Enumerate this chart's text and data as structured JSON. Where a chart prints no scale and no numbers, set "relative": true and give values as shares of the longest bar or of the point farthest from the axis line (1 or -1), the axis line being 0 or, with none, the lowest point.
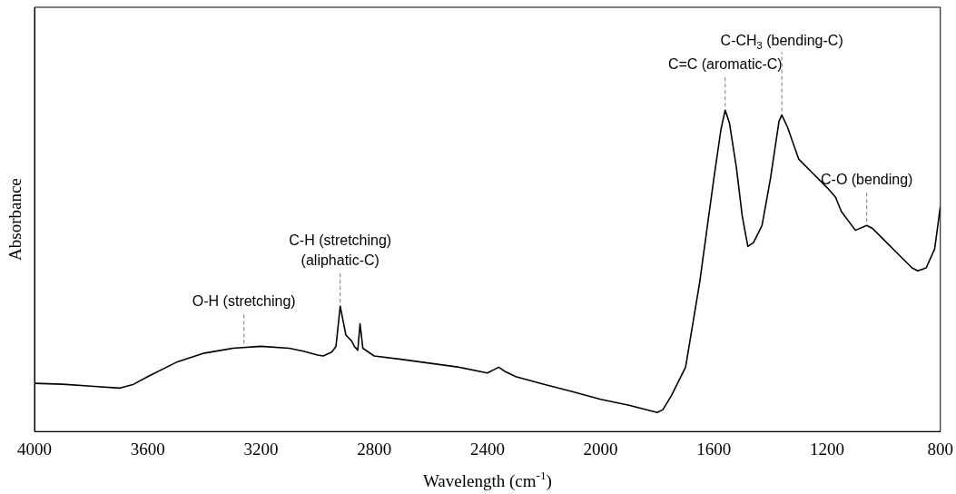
{
  "chart_data": {
    "type": "line",
    "relative": true,
    "xlabel": "Wavelength (cm$^{-1}$)",
    "ylabel": "Absorbance",
    "xlim": [
      4000,
      800
    ],
    "xticks": [
      4000,
      3600,
      3200,
      2800,
      2400,
      2000,
      1600,
      1200,
      800
    ],
    "grid": false,
    "legend": false,
    "marker": "none",
    "line_style": "solid",
    "series": [
      {
        "color": "#000000",
        "x": [
          4000,
          3900,
          3800,
          3700,
          3650,
          3600,
          3500,
          3400,
          3300,
          3200,
          3100,
          3050,
          3000,
          2980,
          2950,
          2935,
          2920,
          2900,
          2880,
          2870,
          2858,
          2850,
          2840,
          2800,
          2700,
          2600,
          2500,
          2400,
          2360,
          2340,
          2300,
          2200,
          2100,
          2000,
          1900,
          1800,
          1780,
          1750,
          1700,
          1650,
          1600,
          1575,
          1560,
          1545,
          1520,
          1500,
          1480,
          1460,
          1430,
          1400,
          1370,
          1360,
          1340,
          1300,
          1250,
          1200,
          1170,
          1150,
          1100,
          1060,
          1040,
          1000,
          950,
          900,
          880,
          850,
          820,
          800
        ],
        "values": [
          0.15,
          0.147,
          0.141,
          0.135,
          0.147,
          0.171,
          0.215,
          0.244,
          0.259,
          0.265,
          0.259,
          0.25,
          0.238,
          0.235,
          0.247,
          0.265,
          0.39,
          0.3,
          0.282,
          0.265,
          0.253,
          0.335,
          0.259,
          0.235,
          0.224,
          0.212,
          0.2,
          0.182,
          0.2,
          0.188,
          0.171,
          0.147,
          0.124,
          0.1,
          0.082,
          0.059,
          0.068,
          0.112,
          0.2,
          0.465,
          0.788,
          0.94,
          1.0,
          0.96,
          0.818,
          0.671,
          0.576,
          0.588,
          0.641,
          0.788,
          0.965,
          0.985,
          0.947,
          0.847,
          0.803,
          0.759,
          0.729,
          0.685,
          0.626,
          0.641,
          0.632,
          0.597,
          0.553,
          0.509,
          0.5,
          0.509,
          0.568,
          0.7
        ]
      }
    ],
    "annotations": [
      {
        "text": "O-H (stretching)",
        "x": 3260,
        "y": 0.262
      },
      {
        "text": "C-H (stretching)\n(aliphatic-C)",
        "x": 2920,
        "y": 0.39
      },
      {
        "text": "C=C (aromatic-C)",
        "x": 1560,
        "y": 1.0
      },
      {
        "text": "C-CH$_{3}$ (bending-C)",
        "x": 1360,
        "y": 0.985
      },
      {
        "text": "C-O (bending)",
        "x": 1060,
        "y": 0.641
      }
    ]
  }
}
